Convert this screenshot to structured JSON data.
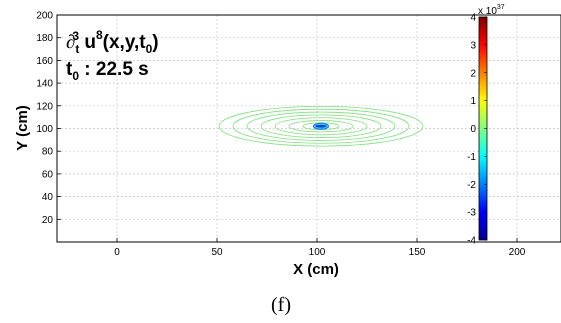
{
  "caption": "(f)",
  "chart_data": {
    "type": "contour",
    "xlabel": "X (cm)",
    "ylabel": "Y (cm)",
    "xlim": [
      -30,
      222
    ],
    "ylim": [
      0,
      200
    ],
    "xticks": [
      0,
      50,
      100,
      150,
      200
    ],
    "yticks": [
      20,
      40,
      60,
      80,
      100,
      120,
      140,
      160,
      180,
      200
    ],
    "grid": true,
    "annotation": {
      "line1": {
        "d": "∂",
        "sub": "t",
        "sup": "3",
        "mid": " u",
        "sup2": "8",
        "rest": "(x,y,t",
        "sub2": "0",
        "close": ")"
      },
      "line2": {
        "t": "t",
        "sub": "0",
        "rest": " : 22.5 s"
      }
    },
    "center": [
      102,
      102
    ],
    "contours": {
      "outer_radii_x": [
        9,
        16,
        23,
        30,
        37,
        44,
        51
      ],
      "outer_radii_y": [
        3,
        5,
        7.5,
        10,
        12.5,
        15,
        17.5
      ],
      "color": "#7fe07f"
    },
    "core": {
      "rx": 3,
      "ry": 1.5
    },
    "colorbar": {
      "range": [
        -4,
        4
      ],
      "ticks": [
        -4,
        -3,
        -2,
        -1,
        0,
        1,
        2,
        3,
        4
      ],
      "exponent_label": "x 10",
      "exponent": "37"
    }
  }
}
